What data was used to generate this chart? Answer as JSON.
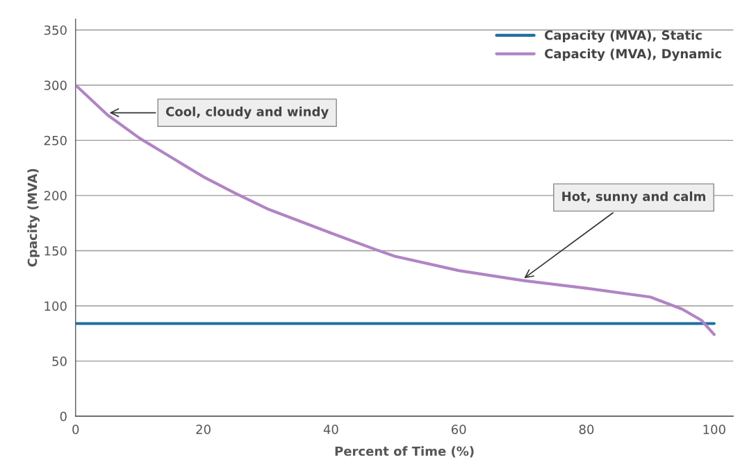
{
  "chart_data": {
    "type": "line",
    "xlabel": "Percent of Time (%)",
    "ylabel": "Cpacity (MVA)",
    "x": [
      0,
      5,
      10,
      20,
      25,
      30,
      40,
      47,
      50,
      60,
      70,
      80,
      90,
      95,
      98,
      100
    ],
    "series": [
      {
        "name": "Capacity (MVA), Static",
        "color": "#1f6fa3",
        "x": [
          0,
          100
        ],
        "values": [
          84,
          84
        ]
      },
      {
        "name": "Capacity (MVA), Dynamic",
        "color": "#b184c4",
        "values": [
          300,
          273,
          252,
          217,
          202,
          188,
          166,
          151,
          145,
          132,
          123,
          116,
          108,
          97,
          87,
          74
        ]
      }
    ],
    "xlim": [
      0,
      103
    ],
    "ylim": [
      0,
      360
    ],
    "xticks": [
      0,
      20,
      40,
      60,
      80,
      100
    ],
    "yticks": [
      0,
      50,
      100,
      150,
      200,
      250,
      300,
      350
    ],
    "grid": "y",
    "legend": "top right",
    "marker": "none",
    "line_style": "solid",
    "annotations": [
      {
        "text": "Cool, cloudy and windy",
        "x": 5,
        "y": 275
      },
      {
        "text": "Hot, sunny and calm",
        "x": 70,
        "y": 124
      }
    ]
  }
}
